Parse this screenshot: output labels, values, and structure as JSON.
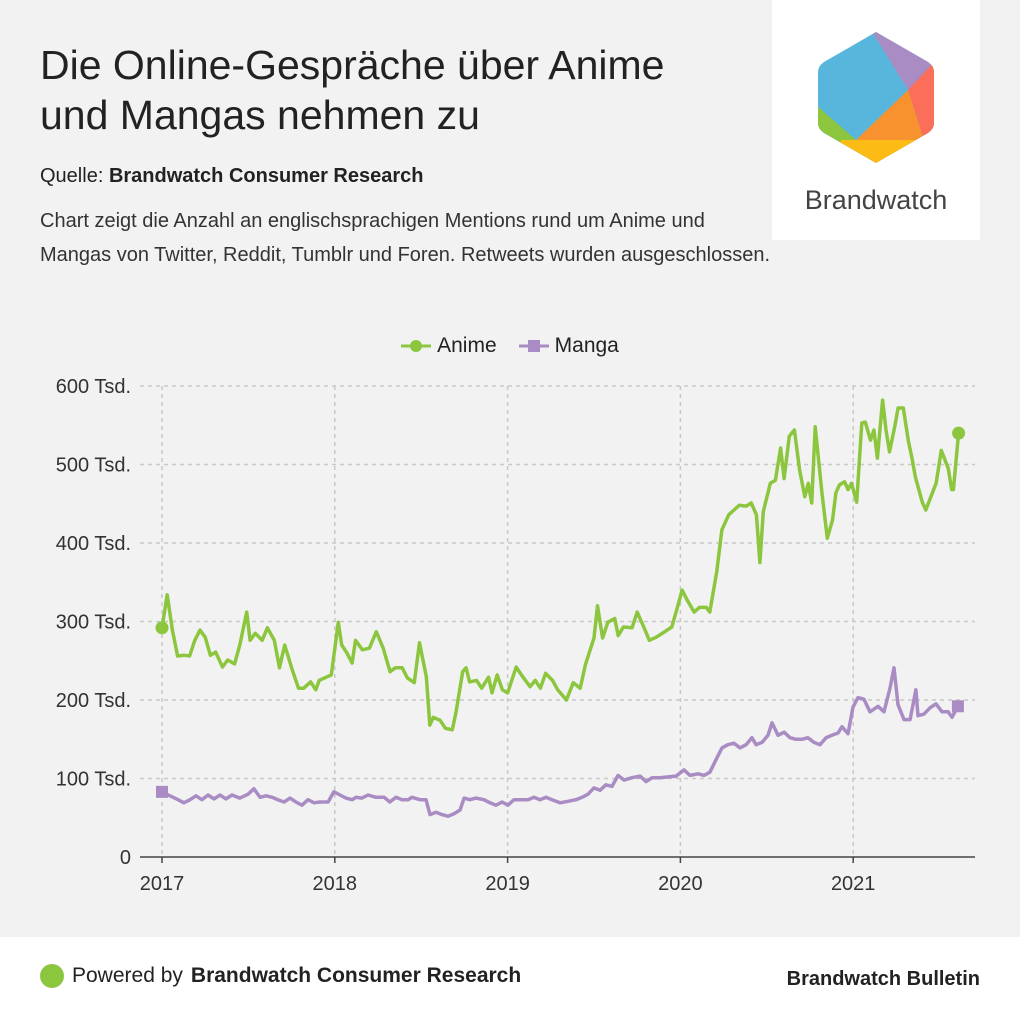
{
  "title": "Die Online-Gespräche über Anime und Mangas nehmen zu",
  "source_label": "Quelle:",
  "source_name": "Brandwatch Consumer Research",
  "description": "Chart zeigt die Anzahl an englischsprachigen Mentions rund um Anime und Mangas von Twitter, Reddit, Tumblr und Foren. Retweets wurden ausgeschlossen.",
  "logo": {
    "text": "Brandwatch"
  },
  "footer": {
    "powered_prefix": "Powered by",
    "powered_name": "Brandwatch Consumer Research",
    "brand": "Brandwatch Bulletin"
  },
  "colors": {
    "anime": "#8cc63f",
    "manga": "#a98cc3",
    "grid": "#c8c8c8"
  },
  "chart_data": {
    "type": "line",
    "title": "",
    "xlabel": "",
    "ylabel": "",
    "ylim": [
      0,
      600
    ],
    "xlim": [
      2017,
      2021.72
    ],
    "yticks": [
      0,
      100,
      200,
      300,
      400,
      500,
      600
    ],
    "ytick_labels": [
      "0",
      "100 Tsd.",
      "200 Tsd.",
      "300 Tsd.",
      "400 Tsd.",
      "500 Tsd.",
      "600 Tsd."
    ],
    "xticks": [
      2017,
      2018,
      2019,
      2020,
      2021
    ],
    "xtick_labels": [
      "2017",
      "2018",
      "2019",
      "2020",
      "2021"
    ],
    "grid": true,
    "legend": "top-center",
    "series": [
      {
        "name": "Anime",
        "marker": "circle",
        "x": [
          2017.0,
          2017.03,
          2017.06,
          2017.09,
          2017.13,
          2017.16,
          2017.19,
          2017.22,
          2017.25,
          2017.28,
          2017.31,
          2017.35,
          2017.38,
          2017.42,
          2017.45,
          2017.49,
          2017.51,
          2017.54,
          2017.58,
          2017.61,
          2017.65,
          2017.68,
          2017.71,
          2017.75,
          2017.79,
          2017.82,
          2017.86,
          2017.89,
          2017.91,
          2017.95,
          2017.98,
          2018.02,
          2018.04,
          2018.07,
          2018.1,
          2018.12,
          2018.16,
          2018.2,
          2018.24,
          2018.28,
          2018.32,
          2018.35,
          2018.39,
          2018.42,
          2018.46,
          2018.49,
          2018.53,
          2018.55,
          2018.57,
          2018.61,
          2018.64,
          2018.68,
          2018.7,
          2018.74,
          2018.76,
          2018.78,
          2018.82,
          2018.85,
          2018.89,
          2018.91,
          2018.94,
          2018.97,
          2019.0,
          2019.05,
          2019.08,
          2019.13,
          2019.16,
          2019.19,
          2019.22,
          2019.26,
          2019.29,
          2019.34,
          2019.38,
          2019.42,
          2019.45,
          2019.5,
          2019.52,
          2019.55,
          2019.58,
          2019.62,
          2019.64,
          2019.67,
          2019.72,
          2019.75,
          2019.79,
          2019.82,
          2019.86,
          2019.91,
          2019.95,
          2019.99,
          2020.01,
          2020.04,
          2020.08,
          2020.11,
          2020.15,
          2020.17,
          2020.21,
          2020.24,
          2020.28,
          2020.31,
          2020.34,
          2020.38,
          2020.41,
          2020.44,
          2020.46,
          2020.48,
          2020.52,
          2020.55,
          2020.58,
          2020.6,
          2020.63,
          2020.66,
          2020.69,
          2020.72,
          2020.74,
          2020.76,
          2020.78,
          2020.82,
          2020.85,
          2020.88,
          2020.9,
          2020.92,
          2020.95,
          2020.97,
          2020.99,
          2021.02,
          2021.05,
          2021.07,
          2021.1,
          2021.12,
          2021.14,
          2021.17,
          2021.19,
          2021.21,
          2021.24,
          2021.26,
          2021.29,
          2021.32,
          2021.34,
          2021.36,
          2021.4,
          2021.42,
          2021.46,
          2021.48,
          2021.51,
          2021.55,
          2021.57,
          2021.58,
          2021.61
        ],
        "y": [
          292,
          334,
          289,
          256,
          257,
          256,
          276,
          289,
          280,
          257,
          261,
          242,
          251,
          246,
          270,
          312,
          276,
          285,
          276,
          292,
          276,
          241,
          270,
          241,
          215,
          215,
          223,
          213,
          225,
          229,
          232,
          299,
          270,
          260,
          247,
          276,
          264,
          266,
          287,
          266,
          236,
          241,
          241,
          228,
          222,
          273,
          229,
          168,
          178,
          174,
          164,
          162,
          183,
          236,
          241,
          223,
          225,
          215,
          229,
          209,
          232,
          213,
          209,
          242,
          232,
          217,
          225,
          215,
          234,
          225,
          213,
          200,
          222,
          215,
          245,
          279,
          320,
          279,
          299,
          304,
          282,
          293,
          292,
          312,
          292,
          276,
          280,
          287,
          293,
          324,
          340,
          327,
          312,
          318,
          318,
          312,
          363,
          417,
          436,
          442,
          448,
          447,
          451,
          436,
          375,
          440,
          476,
          480,
          521,
          482,
          536,
          544,
          493,
          459,
          476,
          451,
          548,
          462,
          406,
          429,
          464,
          474,
          478,
          468,
          476,
          452,
          553,
          554,
          531,
          544,
          508,
          582,
          544,
          516,
          548,
          572,
          572,
          529,
          508,
          484,
          452,
          442,
          465,
          476,
          518,
          495,
          468,
          468,
          540
        ]
      },
      {
        "name": "Manga",
        "marker": "square",
        "x": [
          2017.0,
          2017.046,
          2017.093,
          2017.127,
          2017.162,
          2017.197,
          2017.231,
          2017.266,
          2017.301,
          2017.336,
          2017.37,
          2017.405,
          2017.451,
          2017.498,
          2017.532,
          2017.567,
          2017.602,
          2017.637,
          2017.671,
          2017.706,
          2017.741,
          2017.775,
          2017.81,
          2017.845,
          2017.88,
          2017.914,
          2017.961,
          2017.995,
          2018.03,
          2018.065,
          2018.1,
          2018.123,
          2018.157,
          2018.192,
          2018.238,
          2018.285,
          2018.319,
          2018.354,
          2018.389,
          2018.424,
          2018.447,
          2018.493,
          2018.528,
          2018.551,
          2018.586,
          2018.62,
          2018.655,
          2018.69,
          2018.725,
          2018.748,
          2018.782,
          2018.817,
          2018.863,
          2018.898,
          2018.933,
          2018.968,
          2019.002,
          2019.037,
          2019.072,
          2019.118,
          2019.153,
          2019.188,
          2019.222,
          2019.257,
          2019.303,
          2019.35,
          2019.396,
          2019.431,
          2019.465,
          2019.5,
          2019.535,
          2019.569,
          2019.604,
          2019.639,
          2019.674,
          2019.72,
          2019.766,
          2019.801,
          2019.836,
          2019.882,
          2019.928,
          2019.975,
          2020.021,
          2020.056,
          2020.102,
          2020.137,
          2020.171,
          2020.206,
          2020.241,
          2020.275,
          2020.31,
          2020.345,
          2020.38,
          2020.414,
          2020.438,
          2020.472,
          2020.507,
          2020.53,
          2020.565,
          2020.6,
          2020.634,
          2020.669,
          2020.704,
          2020.738,
          2020.773,
          2020.808,
          2020.843,
          2020.877,
          2020.912,
          2020.935,
          2020.97,
          2020.999,
          2021.028,
          2021.062,
          2021.097,
          2021.144,
          2021.178,
          2021.213,
          2021.236,
          2021.259,
          2021.294,
          2021.329,
          2021.363,
          2021.375,
          2021.41,
          2021.444,
          2021.479,
          2021.514,
          2021.549,
          2021.572,
          2021.606
        ],
        "y": [
          83,
          78,
          73,
          69,
          73,
          78,
          73,
          79,
          74,
          79,
          74,
          79,
          75,
          80,
          87,
          76,
          78,
          76,
          73,
          70,
          75,
          70,
          66,
          73,
          69,
          70,
          70,
          83,
          79,
          75,
          73,
          76,
          75,
          79,
          76,
          76,
          70,
          76,
          73,
          73,
          76,
          73,
          73,
          54,
          57,
          54,
          52,
          55,
          60,
          75,
          73,
          75,
          73,
          69,
          66,
          70,
          66,
          73,
          73,
          73,
          76,
          73,
          76,
          73,
          69,
          71,
          73,
          76,
          80,
          88,
          85,
          92,
          90,
          104,
          98,
          101,
          103,
          96,
          101,
          101,
          102,
          103,
          111,
          104,
          106,
          104,
          108,
          124,
          139,
          143,
          145,
          139,
          143,
          152,
          143,
          146,
          155,
          171,
          155,
          159,
          152,
          150,
          150,
          152,
          146,
          143,
          152,
          155,
          158,
          166,
          157,
          191,
          203,
          201,
          185,
          192,
          185,
          215,
          241,
          194,
          175,
          175,
          213,
          180,
          182,
          190,
          195,
          185,
          185,
          178,
          192
        ]
      }
    ]
  }
}
